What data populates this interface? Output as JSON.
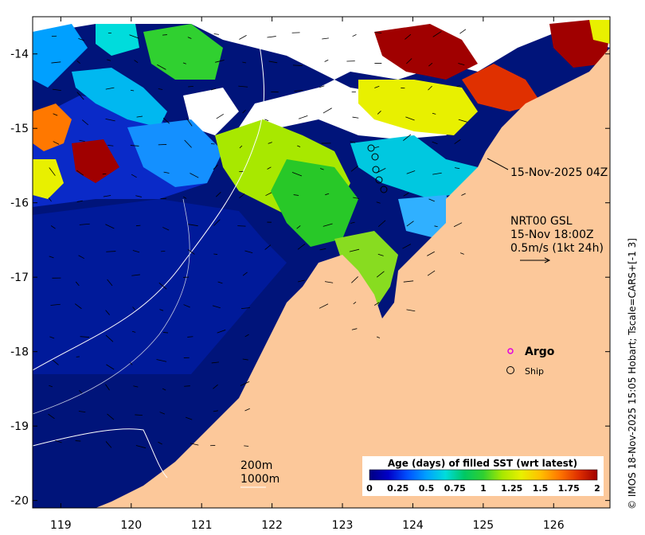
{
  "map": {
    "x_ticks": [
      "119",
      "120",
      "121",
      "122",
      "123",
      "124",
      "125",
      "126"
    ],
    "y_ticks": [
      "-14",
      "-15",
      "-16",
      "-17",
      "-18",
      "-19",
      "-20"
    ],
    "lon_range": [
      118.6,
      126.8
    ],
    "lat_range": [
      -20.1,
      -13.5
    ]
  },
  "annotations": {
    "date_label": "15-Nov-2025 04Z",
    "current_title": "NRT00 GSL",
    "current_time": "15-Nov 18:00Z",
    "current_scale": "0.5m/s (1kt 24h)"
  },
  "legend": {
    "argo_label": "Argo",
    "ship_label": "Ship",
    "argo_color": "#e000e0"
  },
  "depth_labels": {
    "contour_200": "200m",
    "contour_1000": "1000m"
  },
  "colorbar": {
    "title": "Age (days) of filled SST (wrt latest)",
    "ticks": [
      "0",
      "0.25",
      "0.5",
      "0.75",
      "1",
      "1.25",
      "1.5",
      "1.75",
      "2"
    ],
    "colors": [
      "#000080",
      "#0000c8",
      "#0050ff",
      "#00a0ff",
      "#00dcdc",
      "#00c864",
      "#30d030",
      "#a8e800",
      "#e8f000",
      "#ffc000",
      "#ff7800",
      "#e03000",
      "#a00000"
    ]
  },
  "credit": "© IMOS 18-Nov-2025 15:05 Hobart; Tscale=CARS+[-1 3]",
  "colors": {
    "land": "#fcc89a",
    "ocean_deep": "#00147a",
    "no_data": "#ffffff"
  }
}
